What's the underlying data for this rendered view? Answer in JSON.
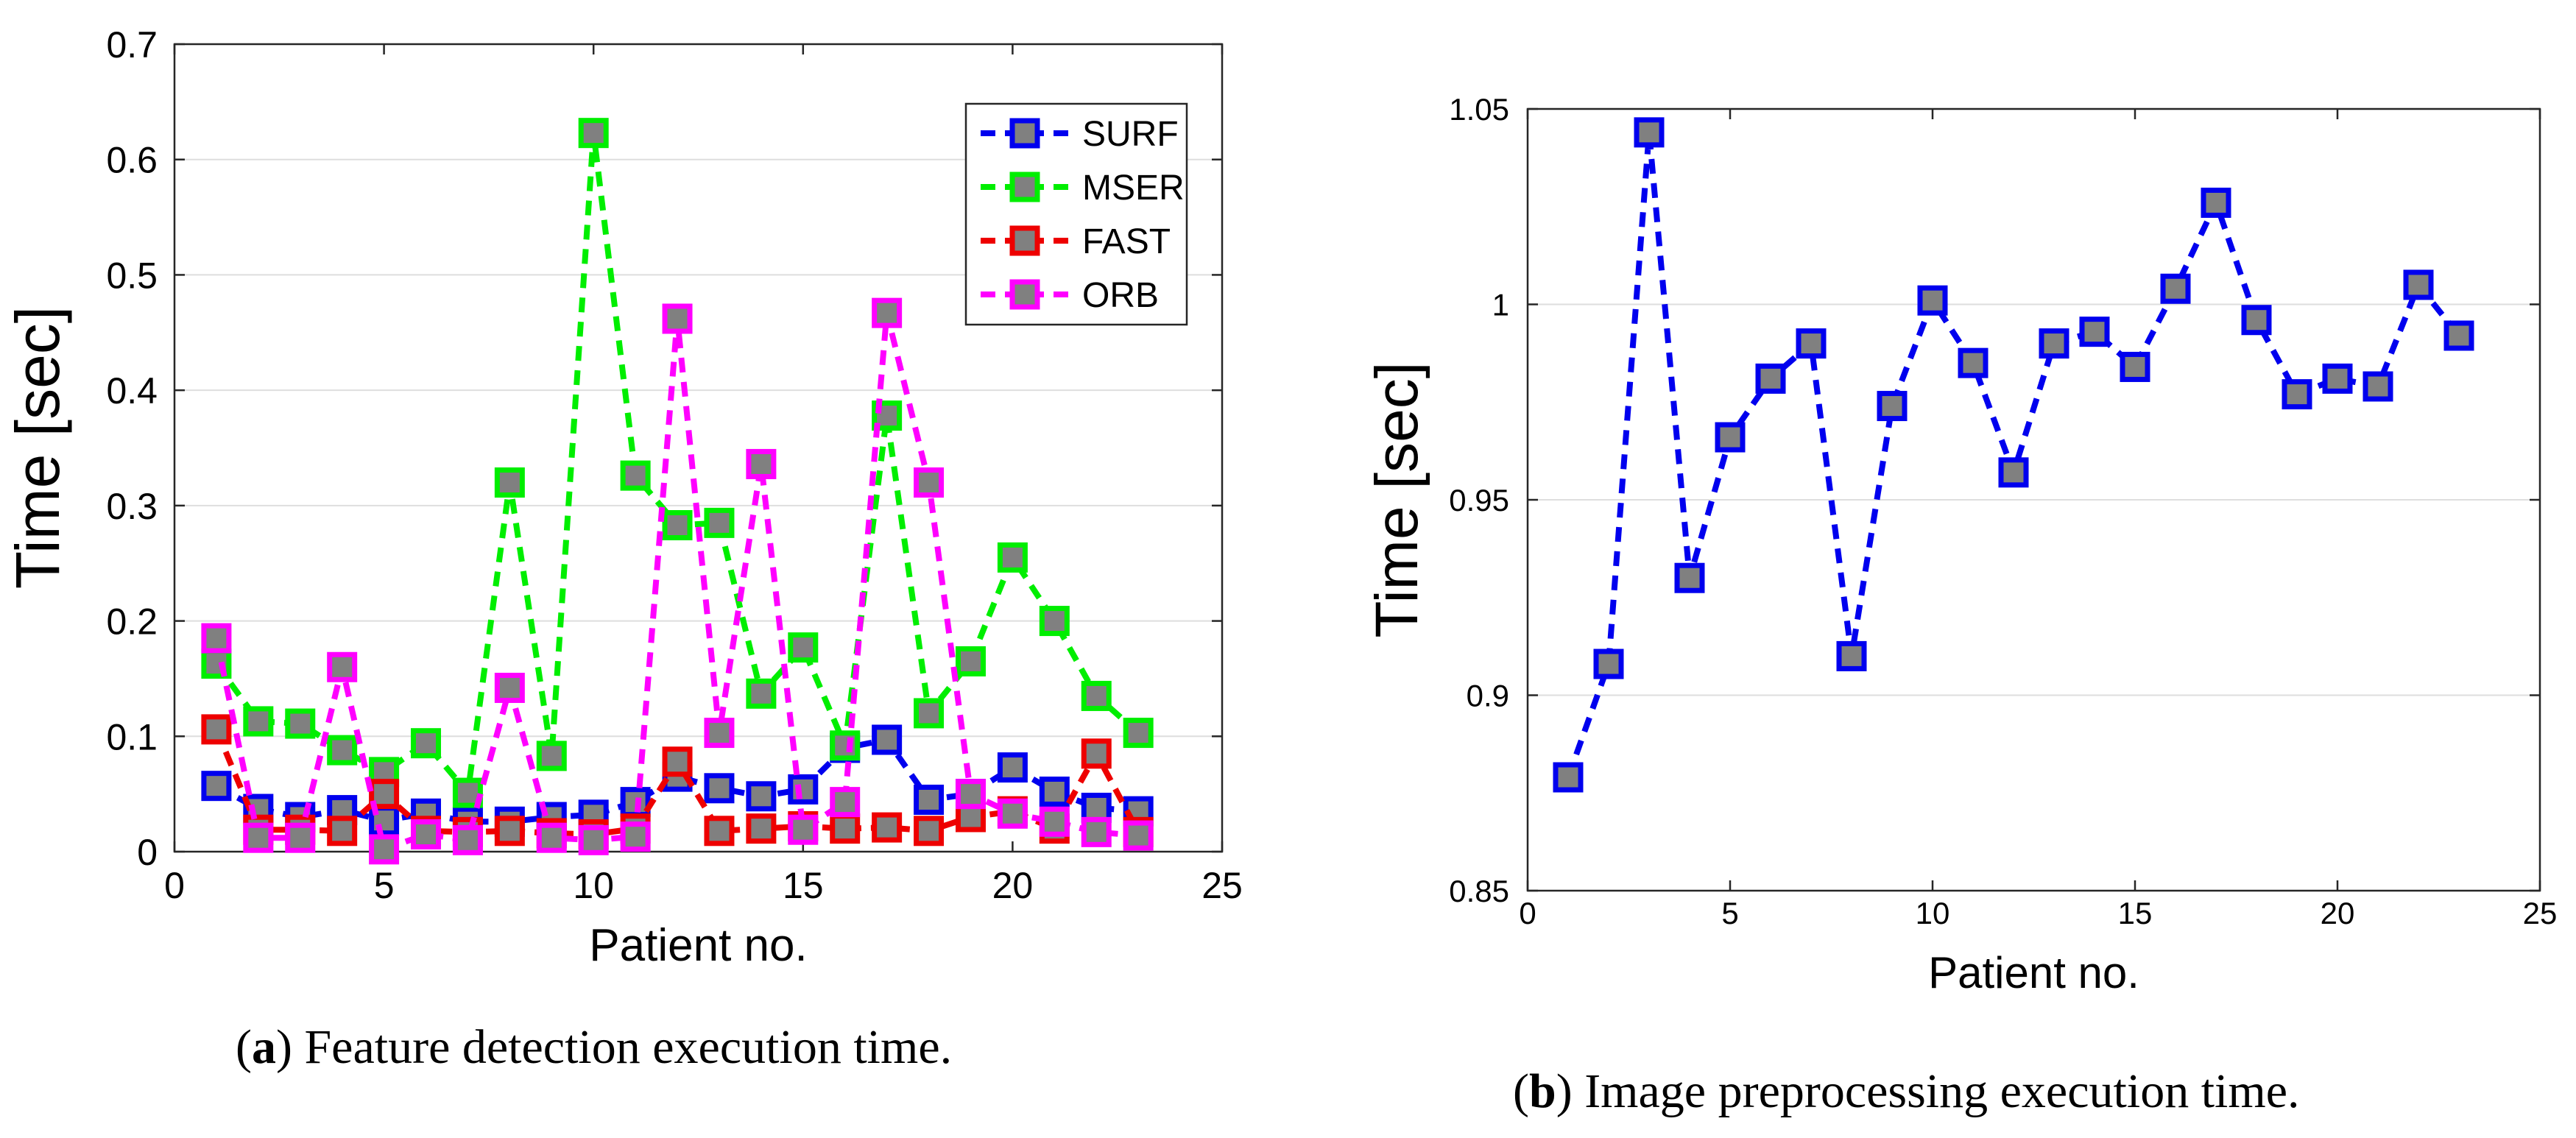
{
  "colors": {
    "surf": "#0000ee",
    "mser": "#00ee00",
    "fast": "#ee0000",
    "orb": "#ff00ff",
    "marker_fill": "#808080",
    "grid": "#dedede",
    "axis": "#262626"
  },
  "captions": {
    "a": {
      "letter": "a",
      "text": "Feature detection execution time."
    },
    "b": {
      "letter": "b",
      "text": "Image preprocessing execution time."
    }
  },
  "chart_data": [
    {
      "type": "line",
      "title": "",
      "xlabel": "Patient no.",
      "ylabel": "Time [sec]",
      "xlim": [
        0,
        25
      ],
      "ylim": [
        0,
        0.7
      ],
      "xticks": [
        0,
        5,
        10,
        15,
        20,
        25
      ],
      "yticks": [
        0,
        0.1,
        0.2,
        0.3,
        0.4,
        0.5,
        0.6,
        0.7
      ],
      "ytick_labels": [
        "0",
        "0.1",
        "0.2",
        "0.3",
        "0.4",
        "0.5",
        "0.6",
        "0.7"
      ],
      "grid": "horizontal",
      "legend_position": "top-right",
      "x": [
        1,
        2,
        3,
        4,
        5,
        6,
        7,
        8,
        9,
        10,
        11,
        12,
        13,
        14,
        15,
        16,
        17,
        18,
        19,
        20,
        21,
        22,
        23
      ],
      "series": [
        {
          "name": "SURF",
          "color_key": "surf",
          "values": [
            0.057,
            0.037,
            0.03,
            0.036,
            0.027,
            0.033,
            0.026,
            0.026,
            0.03,
            0.032,
            0.043,
            0.065,
            0.055,
            0.048,
            0.054,
            0.09,
            0.097,
            0.045,
            0.05,
            0.073,
            0.052,
            0.038,
            0.035
          ]
        },
        {
          "name": "MSER",
          "color_key": "mser",
          "values": [
            0.163,
            0.113,
            0.111,
            0.088,
            0.069,
            0.094,
            0.051,
            0.32,
            0.083,
            0.623,
            0.326,
            0.283,
            0.285,
            0.137,
            0.177,
            0.092,
            0.378,
            0.12,
            0.165,
            0.255,
            0.2,
            0.135,
            0.103
          ]
        },
        {
          "name": "FAST",
          "color_key": "fast",
          "values": [
            0.106,
            0.019,
            0.019,
            0.018,
            0.05,
            0.018,
            0.017,
            0.018,
            0.016,
            0.015,
            0.02,
            0.078,
            0.018,
            0.02,
            0.022,
            0.02,
            0.021,
            0.018,
            0.03,
            0.035,
            0.02,
            0.085,
            0.017
          ]
        },
        {
          "name": "ORB",
          "color_key": "orb",
          "values": [
            0.185,
            0.012,
            0.012,
            0.16,
            0.002,
            0.015,
            0.01,
            0.142,
            0.012,
            0.01,
            0.013,
            0.462,
            0.103,
            0.336,
            0.019,
            0.043,
            0.467,
            0.32,
            0.05,
            0.033,
            0.026,
            0.017,
            0.014
          ]
        }
      ]
    },
    {
      "type": "line",
      "title": "",
      "xlabel": "Patient no.",
      "ylabel": "Time [sec]",
      "xlim": [
        0,
        25
      ],
      "ylim": [
        0.85,
        1.05
      ],
      "xticks": [
        0,
        5,
        10,
        15,
        20,
        25
      ],
      "yticks": [
        0.85,
        0.9,
        0.95,
        1.0,
        1.05
      ],
      "ytick_labels": [
        "0.85",
        "0.9",
        "0.95",
        "1",
        "1.05"
      ],
      "grid": "horizontal",
      "x": [
        1,
        2,
        3,
        4,
        5,
        6,
        7,
        8,
        9,
        10,
        11,
        12,
        13,
        14,
        15,
        16,
        17,
        18,
        19,
        20,
        21,
        22,
        23
      ],
      "series": [
        {
          "name": "",
          "color_key": "surf",
          "values": [
            0.879,
            0.908,
            1.044,
            0.93,
            0.966,
            0.981,
            0.99,
            0.91,
            0.974,
            1.001,
            0.985,
            0.957,
            0.99,
            0.993,
            0.984,
            1.004,
            1.026,
            0.996,
            0.977,
            0.981,
            0.979,
            1.005,
            0.992
          ]
        }
      ]
    }
  ]
}
